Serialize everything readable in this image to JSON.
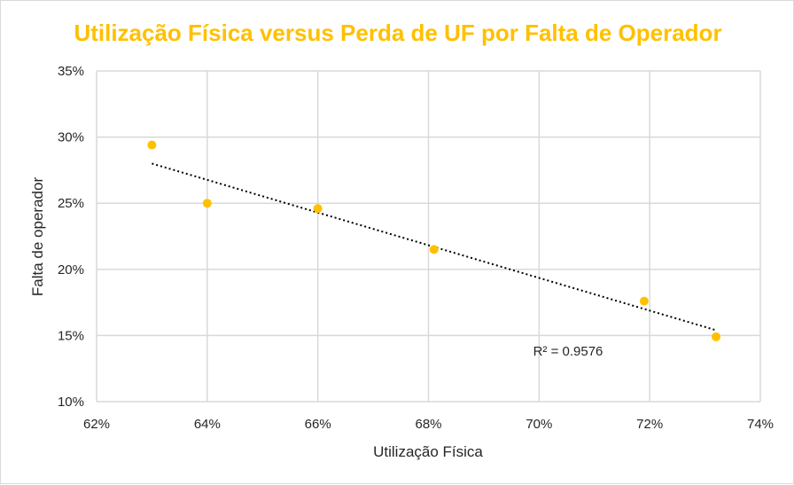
{
  "chart_data": {
    "type": "scatter",
    "title": "Utilização Física versus Perda de UF por Falta de Operador",
    "xlabel": "Utilização Física",
    "ylabel": "Falta de operador",
    "xlim": [
      0.62,
      0.74
    ],
    "ylim": [
      0.1,
      0.35
    ],
    "x_ticks": [
      0.62,
      0.64,
      0.66,
      0.68,
      0.7,
      0.72,
      0.74
    ],
    "y_ticks": [
      0.1,
      0.15,
      0.2,
      0.25,
      0.3,
      0.35
    ],
    "x_tick_labels": [
      "62%",
      "64%",
      "66%",
      "68%",
      "70%",
      "72%",
      "74%"
    ],
    "y_tick_labels": [
      "10%",
      "15%",
      "20%",
      "25%",
      "30%",
      "35%"
    ],
    "grid": true,
    "series": [
      {
        "x": [
          0.63,
          0.64,
          0.66,
          0.681,
          0.719,
          0.732
        ],
        "y": [
          0.294,
          0.25,
          0.246,
          0.215,
          0.176,
          0.149
        ]
      }
    ],
    "trendline": {
      "type": "linear",
      "x_range": [
        0.63,
        0.732
      ],
      "y_range": [
        0.28,
        0.154
      ],
      "annotation": "R² = 0.9576"
    },
    "colors": {
      "marker": "#FFC000",
      "title": "#FFC000",
      "grid": "#d9d9d9",
      "trendline": "#000000"
    }
  }
}
